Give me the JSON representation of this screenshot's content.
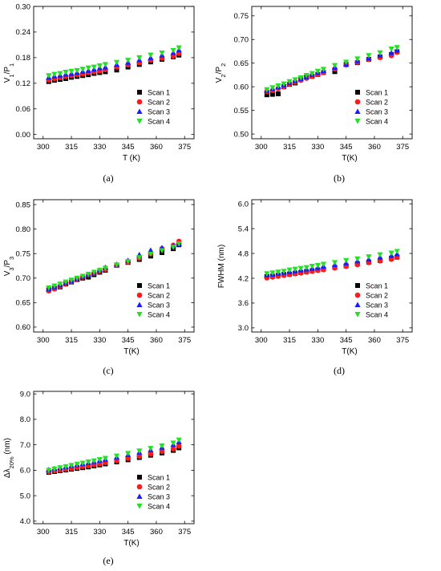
{
  "colors": {
    "Scan 1": "#000000",
    "Scan 2": "#ff1a1a",
    "Scan 3": "#1a1aff",
    "Scan 4": "#22e022"
  },
  "markers": {
    "Scan 1": "square",
    "Scan 2": "circle",
    "Scan 3": "triangle-up",
    "Scan 4": "triangle-down"
  },
  "chart_data": [
    {
      "panel": "(a)",
      "type": "scatter",
      "xlabel": "T (K)",
      "ylabel_main": "V",
      "ylabel_sub1": "1",
      "ylabel_mid": "/P",
      "ylabel_sub2": "1",
      "xlim": [
        295,
        380
      ],
      "ylim": [
        -0.01,
        0.3
      ],
      "xticks": [
        "300",
        "315",
        "330",
        "345",
        "360",
        "375"
      ],
      "yticks": [
        "0.00",
        "0.06",
        "0.12",
        "0.18",
        "0.24",
        "0.30"
      ],
      "legend": "lower-right",
      "series": [
        {
          "name": "Scan 1",
          "x": [
            303,
            306,
            309,
            312,
            315,
            318,
            321,
            324,
            327,
            330,
            333,
            339,
            345,
            351,
            357,
            363,
            369,
            372
          ],
          "y": [
            0.124,
            0.127,
            0.129,
            0.131,
            0.134,
            0.136,
            0.138,
            0.14,
            0.143,
            0.145,
            0.147,
            0.151,
            0.158,
            0.164,
            0.17,
            0.176,
            0.182,
            0.186
          ]
        },
        {
          "name": "Scan 2",
          "x": [
            303,
            306,
            309,
            312,
            315,
            318,
            321,
            324,
            327,
            330,
            333,
            339,
            345,
            351,
            357,
            363,
            369,
            372
          ],
          "y": [
            0.128,
            0.131,
            0.133,
            0.136,
            0.138,
            0.14,
            0.142,
            0.145,
            0.147,
            0.149,
            0.152,
            0.158,
            0.163,
            0.168,
            0.174,
            0.179,
            0.184,
            0.19
          ]
        },
        {
          "name": "Scan 3",
          "x": [
            303,
            306,
            309,
            312,
            315,
            318,
            321,
            324,
            327,
            330,
            333,
            339,
            345,
            351,
            357,
            363,
            369,
            372
          ],
          "y": [
            0.134,
            0.137,
            0.139,
            0.141,
            0.143,
            0.145,
            0.148,
            0.15,
            0.153,
            0.156,
            0.158,
            0.164,
            0.169,
            0.175,
            0.18,
            0.186,
            0.192,
            0.198
          ]
        },
        {
          "name": "Scan 4",
          "x": [
            303,
            306,
            309,
            312,
            315,
            318,
            321,
            324,
            327,
            330,
            333,
            339,
            345,
            351,
            357,
            363,
            369,
            372
          ],
          "y": [
            0.138,
            0.141,
            0.143,
            0.146,
            0.148,
            0.15,
            0.153,
            0.156,
            0.158,
            0.161,
            0.164,
            0.169,
            0.174,
            0.18,
            0.186,
            0.191,
            0.197,
            0.203
          ]
        }
      ]
    },
    {
      "panel": "(b)",
      "type": "scatter",
      "xlabel": "T(K)",
      "ylabel_main": "V",
      "ylabel_sub1": "2",
      "ylabel_mid": "/P",
      "ylabel_sub2": "2",
      "xlim": [
        295,
        380
      ],
      "ylim": [
        0.49,
        0.77
      ],
      "xticks": [
        "300",
        "315",
        "330",
        "345",
        "360",
        "375"
      ],
      "yticks": [
        "0.50",
        "0.55",
        "0.60",
        "0.65",
        "0.70",
        "0.75"
      ],
      "legend": "lower-right",
      "series": [
        {
          "name": "Scan 1",
          "x": [
            303,
            306,
            309,
            312,
            315,
            318,
            321,
            324,
            327,
            330,
            333,
            339,
            345,
            351,
            357,
            363,
            369,
            372
          ],
          "y": [
            0.583,
            0.584,
            0.585,
            0.6,
            0.605,
            0.608,
            0.615,
            0.62,
            0.622,
            0.626,
            0.63,
            0.632,
            0.647,
            0.651,
            0.658,
            0.663,
            0.668,
            0.674
          ]
        },
        {
          "name": "Scan 2",
          "x": [
            303,
            306,
            309,
            312,
            315,
            318,
            321,
            324,
            327,
            330,
            333,
            339,
            345,
            351,
            357,
            363,
            369,
            372
          ],
          "y": [
            0.59,
            0.592,
            0.596,
            0.6,
            0.606,
            0.61,
            0.614,
            0.618,
            0.622,
            0.626,
            0.63,
            0.638,
            0.646,
            0.652,
            0.658,
            0.662,
            0.666,
            0.673
          ]
        },
        {
          "name": "Scan 3",
          "x": [
            303,
            306,
            309,
            312,
            315,
            318,
            321,
            324,
            327,
            330,
            333,
            339,
            345,
            351,
            357,
            363,
            369,
            372
          ],
          "y": [
            0.592,
            0.596,
            0.6,
            0.604,
            0.609,
            0.613,
            0.617,
            0.621,
            0.626,
            0.63,
            0.634,
            0.641,
            0.648,
            0.655,
            0.661,
            0.667,
            0.672,
            0.677
          ]
        },
        {
          "name": "Scan 4",
          "x": [
            303,
            306,
            309,
            312,
            315,
            318,
            321,
            324,
            327,
            330,
            333,
            339,
            345,
            351,
            357,
            363,
            369,
            372
          ],
          "y": [
            0.594,
            0.598,
            0.602,
            0.606,
            0.611,
            0.615,
            0.619,
            0.624,
            0.628,
            0.633,
            0.637,
            0.645,
            0.652,
            0.659,
            0.666,
            0.672,
            0.68,
            0.683
          ]
        }
      ]
    },
    {
      "panel": "(c)",
      "type": "scatter",
      "xlabel": "T(K)",
      "ylabel_main": "V",
      "ylabel_sub1": "3",
      "ylabel_mid": "/P",
      "ylabel_sub2": "3",
      "xlim": [
        295,
        380
      ],
      "ylim": [
        0.59,
        0.86
      ],
      "xticks": [
        "300",
        "315",
        "330",
        "345",
        "360",
        "375"
      ],
      "yticks": [
        "0.60",
        "0.65",
        "0.70",
        "0.75",
        "0.80",
        "0.85"
      ],
      "legend": "lower-right",
      "series": [
        {
          "name": "Scan 1",
          "x": [
            303,
            306,
            309,
            312,
            315,
            318,
            321,
            324,
            327,
            330,
            333,
            339,
            345,
            351,
            357,
            363,
            369,
            372
          ],
          "y": [
            0.676,
            0.679,
            0.682,
            0.688,
            0.692,
            0.697,
            0.7,
            0.702,
            0.707,
            0.712,
            0.716,
            0.726,
            0.732,
            0.738,
            0.745,
            0.752,
            0.76,
            0.768
          ]
        },
        {
          "name": "Scan 2",
          "x": [
            303,
            306,
            309,
            312,
            315,
            318,
            321,
            324,
            327,
            330,
            333,
            339,
            345,
            351,
            357,
            363,
            369,
            372
          ],
          "y": [
            0.674,
            0.678,
            0.683,
            0.688,
            0.693,
            0.698,
            0.702,
            0.706,
            0.71,
            0.714,
            0.718,
            0.726,
            0.733,
            0.741,
            0.75,
            0.76,
            0.767,
            0.775
          ]
        },
        {
          "name": "Scan 3",
          "x": [
            303,
            306,
            309,
            312,
            315,
            318,
            321,
            324,
            327,
            330,
            333,
            339,
            345,
            351,
            357,
            363,
            369,
            372
          ],
          "y": [
            0.678,
            0.682,
            0.686,
            0.69,
            0.695,
            0.699,
            0.703,
            0.707,
            0.712,
            0.716,
            0.722,
            0.728,
            0.736,
            0.748,
            0.757,
            0.762,
            0.766,
            0.77
          ]
        },
        {
          "name": "Scan 4",
          "x": [
            303,
            306,
            309,
            312,
            315,
            318,
            321,
            324,
            327,
            330,
            333,
            339,
            345,
            351,
            357,
            363,
            369,
            372
          ],
          "y": [
            0.68,
            0.684,
            0.688,
            0.692,
            0.696,
            0.7,
            0.704,
            0.708,
            0.712,
            0.716,
            0.72,
            0.727,
            0.734,
            0.742,
            0.749,
            0.756,
            0.763,
            0.77
          ]
        }
      ]
    },
    {
      "panel": "(d)",
      "type": "scatter",
      "xlabel": "T(K)",
      "ylabel_main": "FWHM (nm)",
      "xlim": [
        295,
        380
      ],
      "ylim": [
        2.9,
        6.1
      ],
      "xticks": [
        "300",
        "315",
        "330",
        "345",
        "360",
        "375"
      ],
      "yticks": [
        "3.0",
        "3.6",
        "4.2",
        "4.8",
        "5.4",
        "6.0"
      ],
      "legend": "lower-right",
      "series": [
        {
          "name": "Scan 1",
          "x": [
            303,
            306,
            309,
            312,
            315,
            318,
            321,
            324,
            327,
            330,
            333,
            339,
            345,
            351,
            357,
            363,
            369,
            372
          ],
          "y": [
            4.24,
            4.25,
            4.27,
            4.29,
            4.3,
            4.32,
            4.34,
            4.36,
            4.38,
            4.4,
            4.42,
            4.46,
            4.5,
            4.55,
            4.59,
            4.63,
            4.68,
            4.71
          ]
        },
        {
          "name": "Scan 2",
          "x": [
            303,
            306,
            309,
            312,
            315,
            318,
            321,
            324,
            327,
            330,
            333,
            339,
            345,
            351,
            357,
            363,
            369,
            372
          ],
          "y": [
            4.21,
            4.23,
            4.25,
            4.27,
            4.29,
            4.31,
            4.33,
            4.35,
            4.37,
            4.39,
            4.41,
            4.45,
            4.49,
            4.53,
            4.58,
            4.62,
            4.66,
            4.71
          ]
        },
        {
          "name": "Scan 3",
          "x": [
            303,
            306,
            309,
            312,
            315,
            318,
            321,
            324,
            327,
            330,
            333,
            339,
            345,
            351,
            357,
            363,
            369,
            372
          ],
          "y": [
            4.28,
            4.3,
            4.32,
            4.34,
            4.36,
            4.38,
            4.4,
            4.42,
            4.44,
            4.46,
            4.49,
            4.53,
            4.57,
            4.62,
            4.66,
            4.71,
            4.75,
            4.79
          ]
        },
        {
          "name": "Scan 4",
          "x": [
            303,
            306,
            309,
            312,
            315,
            318,
            321,
            324,
            327,
            330,
            333,
            339,
            345,
            351,
            357,
            363,
            369,
            372
          ],
          "y": [
            4.31,
            4.33,
            4.35,
            4.37,
            4.4,
            4.42,
            4.44,
            4.46,
            4.49,
            4.51,
            4.54,
            4.58,
            4.63,
            4.67,
            4.72,
            4.77,
            4.81,
            4.85
          ]
        }
      ]
    },
    {
      "panel": "(e)",
      "type": "scatter",
      "xlabel": "T(K)",
      "ylabel_main": "Δλ",
      "ylabel_sub1": "20%",
      "ylabel_mid": " (nm)",
      "xlim": [
        295,
        380
      ],
      "ylim": [
        3.9,
        9.1
      ],
      "xticks": [
        "300",
        "315",
        "330",
        "345",
        "360",
        "375"
      ],
      "yticks": [
        "4.0",
        "5.0",
        "6.0",
        "7.0",
        "8.0",
        "9.0"
      ],
      "legend": "lower-right",
      "series": [
        {
          "name": "Scan 1",
          "x": [
            303,
            306,
            309,
            312,
            315,
            318,
            321,
            324,
            327,
            330,
            333,
            339,
            345,
            351,
            357,
            363,
            369,
            372
          ],
          "y": [
            5.92,
            5.95,
            5.98,
            6.01,
            6.04,
            6.07,
            6.1,
            6.13,
            6.17,
            6.21,
            6.25,
            6.33,
            6.41,
            6.5,
            6.59,
            6.68,
            6.78,
            6.88
          ]
        },
        {
          "name": "Scan 2",
          "x": [
            303,
            306,
            309,
            312,
            315,
            318,
            321,
            324,
            327,
            330,
            333,
            339,
            345,
            351,
            357,
            363,
            369,
            372
          ],
          "y": [
            5.95,
            5.98,
            6.01,
            6.04,
            6.08,
            6.11,
            6.15,
            6.18,
            6.22,
            6.26,
            6.3,
            6.38,
            6.47,
            6.55,
            6.65,
            6.74,
            6.84,
            6.95
          ]
        },
        {
          "name": "Scan 3",
          "x": [
            303,
            306,
            309,
            312,
            315,
            318,
            321,
            324,
            327,
            330,
            333,
            339,
            345,
            351,
            357,
            363,
            369,
            372
          ],
          "y": [
            6.02,
            6.06,
            6.1,
            6.14,
            6.18,
            6.22,
            6.26,
            6.3,
            6.34,
            6.39,
            6.43,
            6.52,
            6.61,
            6.71,
            6.8,
            6.9,
            7.01,
            7.12
          ]
        },
        {
          "name": "Scan 4",
          "x": [
            303,
            306,
            309,
            312,
            315,
            318,
            321,
            324,
            327,
            330,
            333,
            339,
            345,
            351,
            357,
            363,
            369,
            372
          ],
          "y": [
            6.0,
            6.05,
            6.1,
            6.14,
            6.19,
            6.24,
            6.28,
            6.33,
            6.37,
            6.42,
            6.47,
            6.56,
            6.66,
            6.76,
            6.86,
            6.96,
            7.07,
            7.19
          ]
        }
      ]
    }
  ]
}
